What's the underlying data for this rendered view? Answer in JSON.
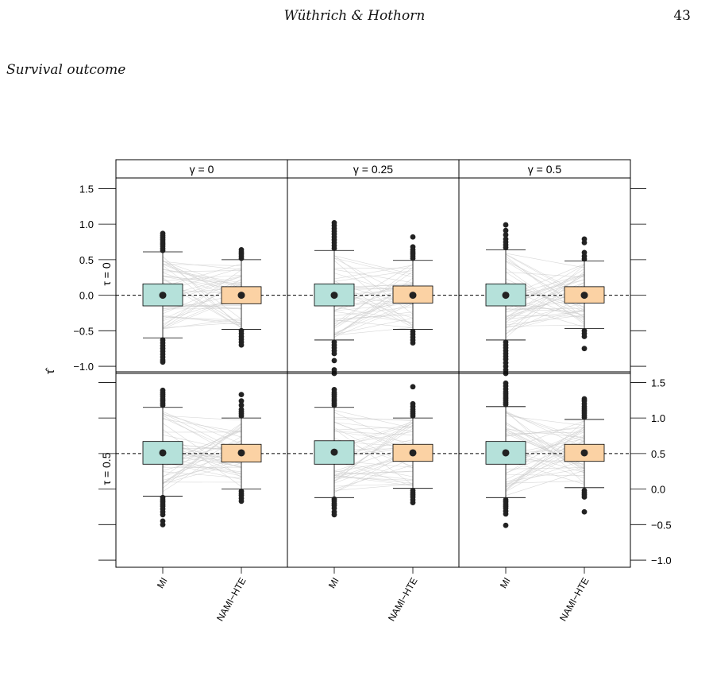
{
  "page": {
    "header": "Wüthrich & Hothorn",
    "page_number": "43",
    "section": "Survival outcome"
  },
  "chart_data": {
    "type": "boxplot",
    "title": "",
    "ylabel": "τ̂",
    "ylim": [
      -1.1,
      1.65
    ],
    "y_ticks": [
      -1.0,
      -0.5,
      0.0,
      0.5,
      1.0,
      1.5
    ],
    "y_tick_labels": [
      "−1.0",
      "−0.5",
      "0.0",
      "0.5",
      "1.0",
      "1.5"
    ],
    "x_categories": [
      "MI",
      "NAMI−HTE"
    ],
    "column_strips": [
      "γ = 0",
      "γ = 0.25",
      "γ = 0.5"
    ],
    "row_strips": [
      "τ = 0",
      "τ = 0.5"
    ],
    "reference_line": "dashed at true τ",
    "paired_lines": "grey lines connecting MI and NAMI−HTE estimates per replication",
    "colors": {
      "MI": "#b5e1da",
      "NAMI-HTE": "#fbd2a4",
      "points": "#222222",
      "pair_lines": "#cccccc"
    },
    "panels": [
      {
        "row": "τ = 0",
        "col": "γ = 0",
        "true_tau": 0.0,
        "boxes": [
          {
            "category": "MI",
            "median": 0.0,
            "q1": -0.15,
            "q3": 0.16,
            "whisker_low": -0.6,
            "whisker_high": 0.61,
            "outliers": [
              0.63,
              0.66,
              0.69,
              0.72,
              0.75,
              0.78,
              0.81,
              0.84,
              0.87,
              -0.63,
              -0.67,
              -0.71,
              -0.75,
              -0.79,
              -0.83,
              -0.87,
              -0.91,
              -0.94
            ]
          },
          {
            "category": "NAMI−HTE",
            "median": 0.0,
            "q1": -0.12,
            "q3": 0.12,
            "whisker_low": -0.48,
            "whisker_high": 0.5,
            "outliers": [
              0.52,
              0.55,
              0.58,
              0.61,
              0.64,
              -0.5,
              -0.54,
              -0.58,
              -0.62,
              -0.66,
              -0.7
            ]
          }
        ]
      },
      {
        "row": "τ = 0",
        "col": "γ = 0.25",
        "true_tau": 0.0,
        "boxes": [
          {
            "category": "MI",
            "median": 0.0,
            "q1": -0.15,
            "q3": 0.16,
            "whisker_low": -0.63,
            "whisker_high": 0.63,
            "outliers": [
              0.66,
              0.7,
              0.74,
              0.78,
              0.82,
              0.86,
              0.9,
              0.94,
              0.98,
              1.02,
              -0.66,
              -0.7,
              -0.74,
              -0.78,
              -0.82,
              -0.92,
              -1.05,
              -1.1
            ]
          },
          {
            "category": "NAMI−HTE",
            "median": 0.0,
            "q1": -0.11,
            "q3": 0.13,
            "whisker_low": -0.48,
            "whisker_high": 0.49,
            "outliers": [
              0.52,
              0.55,
              0.58,
              0.61,
              0.64,
              0.68,
              0.82,
              -0.51,
              -0.55,
              -0.59,
              -0.63,
              -0.67
            ]
          }
        ]
      },
      {
        "row": "τ = 0",
        "col": "γ = 0.5",
        "true_tau": 0.0,
        "boxes": [
          {
            "category": "MI",
            "median": 0.0,
            "q1": -0.15,
            "q3": 0.16,
            "whisker_low": -0.63,
            "whisker_high": 0.64,
            "outliers": [
              0.67,
              0.71,
              0.75,
              0.79,
              0.85,
              0.91,
              0.99,
              -0.66,
              -0.7,
              -0.74,
              -0.78,
              -0.82,
              -0.86,
              -0.9,
              -0.95,
              -1.0,
              -1.05,
              -1.1
            ]
          },
          {
            "category": "NAMI−HTE",
            "median": 0.0,
            "q1": -0.11,
            "q3": 0.12,
            "whisker_low": -0.47,
            "whisker_high": 0.48,
            "outliers": [
              0.51,
              0.55,
              0.6,
              0.74,
              0.79,
              -0.5,
              -0.54,
              -0.58,
              -0.75
            ]
          }
        ]
      },
      {
        "row": "τ = 0.5",
        "col": "γ = 0",
        "true_tau": 0.5,
        "boxes": [
          {
            "category": "MI",
            "median": 0.51,
            "q1": 0.35,
            "q3": 0.67,
            "whisker_low": -0.1,
            "whisker_high": 1.15,
            "outliers": [
              1.18,
              1.21,
              1.24,
              1.27,
              1.3,
              1.33,
              1.36,
              1.39,
              -0.12,
              -0.15,
              -0.18,
              -0.21,
              -0.24,
              -0.28,
              -0.32,
              -0.36,
              -0.45,
              -0.5
            ]
          },
          {
            "category": "NAMI−HTE",
            "median": 0.51,
            "q1": 0.38,
            "q3": 0.63,
            "whisker_low": 0.0,
            "whisker_high": 1.0,
            "outliers": [
              1.03,
              1.06,
              1.09,
              1.12,
              1.18,
              1.24,
              1.33,
              -0.03,
              -0.06,
              -0.09,
              -0.13,
              -0.17
            ]
          }
        ]
      },
      {
        "row": "τ = 0.5",
        "col": "γ = 0.25",
        "true_tau": 0.5,
        "boxes": [
          {
            "category": "MI",
            "median": 0.52,
            "q1": 0.35,
            "q3": 0.68,
            "whisker_low": -0.12,
            "whisker_high": 1.15,
            "outliers": [
              1.18,
              1.21,
              1.24,
              1.27,
              1.3,
              1.33,
              1.36,
              1.4,
              -0.14,
              -0.17,
              -0.2,
              -0.23,
              -0.27,
              -0.32,
              -0.36
            ]
          },
          {
            "category": "NAMI−HTE",
            "median": 0.51,
            "q1": 0.39,
            "q3": 0.63,
            "whisker_low": 0.01,
            "whisker_high": 1.0,
            "outliers": [
              1.03,
              1.06,
              1.09,
              1.12,
              1.16,
              1.2,
              1.44,
              -0.02,
              -0.05,
              -0.08,
              -0.11,
              -0.15,
              -0.19
            ]
          }
        ]
      },
      {
        "row": "τ = 0.5",
        "col": "γ = 0.5",
        "true_tau": 0.5,
        "boxes": [
          {
            "category": "MI",
            "median": 0.51,
            "q1": 0.35,
            "q3": 0.67,
            "whisker_low": -0.12,
            "whisker_high": 1.16,
            "outliers": [
              1.19,
              1.22,
              1.25,
              1.28,
              1.31,
              1.34,
              1.37,
              1.41,
              1.45,
              1.49,
              -0.15,
              -0.18,
              -0.21,
              -0.24,
              -0.27,
              -0.31,
              -0.35,
              -0.51
            ]
          },
          {
            "category": "NAMI−HTE",
            "median": 0.51,
            "q1": 0.39,
            "q3": 0.63,
            "whisker_low": 0.02,
            "whisker_high": 0.98,
            "outliers": [
              1.01,
              1.04,
              1.07,
              1.1,
              1.13,
              1.16,
              1.2,
              1.24,
              1.27,
              -0.02,
              -0.05,
              -0.08,
              -0.11,
              -0.32
            ]
          }
        ]
      }
    ]
  }
}
